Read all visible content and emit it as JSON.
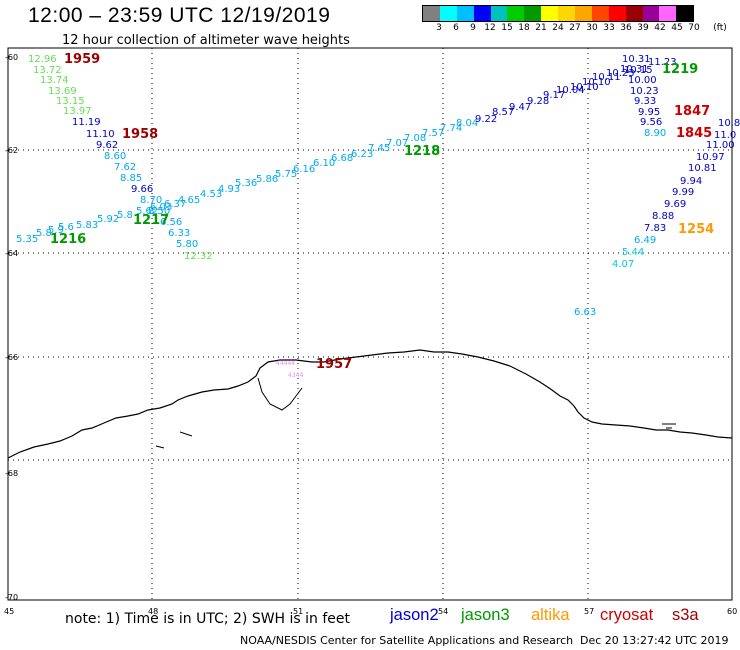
{
  "header": {
    "title": "12:00 – 23:59 UTC 12/19/2019",
    "subtitle": "12 hour collection of altimeter wave heights"
  },
  "color_scale": {
    "labels": [
      "3",
      "6",
      "9",
      "12",
      "15",
      "18",
      "21",
      "24",
      "27",
      "30",
      "33",
      "36",
      "39",
      "42",
      "45",
      "70"
    ],
    "unit": "(ft)",
    "colors": [
      "#808080",
      "#00ffff",
      "#00bfff",
      "#0000ff",
      "#00c0c0",
      "#00cc00",
      "#009900",
      "#ffff00",
      "#ffd700",
      "#ffa500",
      "#ff4500",
      "#ff0000",
      "#990000",
      "#990099",
      "#ff66ff",
      "#000000"
    ]
  },
  "axes": {
    "lat_labels": [
      "-60",
      "-62",
      "-64",
      "-66",
      "-68",
      "-70"
    ],
    "lon_labels": [
      "45",
      "48",
      "51",
      "54",
      "57",
      "60"
    ]
  },
  "tracks": {
    "t1": [
      "12.96",
      "13.72",
      "13.74",
      "13.69",
      "13.15",
      "13.97",
      "11.19",
      "11.10",
      "9.62",
      "8.60",
      "7.62",
      "8.85",
      "9.66",
      "8.70",
      "8.50",
      "6.56",
      "6.33",
      "5.80",
      "12.32"
    ],
    "t2": [
      "5.35",
      "5.8",
      "5.9",
      "5.6",
      "5.83",
      "5.92",
      "5.8",
      "5.62",
      "6.03",
      "6.37",
      "4.65",
      "4.53",
      "4.93",
      "5.36",
      "5.86",
      "5.75",
      "6.16",
      "6.10",
      "6.68",
      "6.23",
      "7.45",
      "7.07",
      "7.08",
      "7.57",
      "7.74",
      "8.04",
      "9.22",
      "8.57",
      "9.47",
      "9.28",
      "9.17",
      "10.04",
      "10.10",
      "10.10",
      "10.11",
      "10.23",
      "10.31"
    ],
    "t3": [
      "10.31",
      "10.15",
      "11.23",
      "10.00",
      "10.23",
      "9.33",
      "9.95",
      "9.56",
      "8.90"
    ],
    "t4": [
      "11.0",
      "11.00",
      "10.97",
      "10.81",
      "9.94",
      "9.99",
      "9.69",
      "8.88",
      "7.83",
      "6.49",
      "5.44",
      "4.07"
    ],
    "t5": [
      "10.8"
    ],
    "lone": [
      "6.63"
    ],
    "pink": [
      "44444",
      "4344"
    ]
  },
  "time_labels": [
    "1959",
    "1958",
    "1217",
    "1216",
    "1218",
    "1219",
    "1847",
    "1845",
    "1254",
    "1957"
  ],
  "note": "note:  1) Time is in UTC;  2) SWH is in feet",
  "legend": [
    {
      "label": "jason2",
      "color": "#0000cc"
    },
    {
      "label": "jason3",
      "color": "#009900"
    },
    {
      "label": "altika",
      "color": "#ff9900"
    },
    {
      "label": "cryosat",
      "color": "#cc0000"
    },
    {
      "label": "s3a",
      "color": "#990000"
    }
  ],
  "footer": "NOAA/NESDIS Center for Satellite Applications and Research",
  "footer_date": "Dec 20 13:27:42 UTC 2019"
}
